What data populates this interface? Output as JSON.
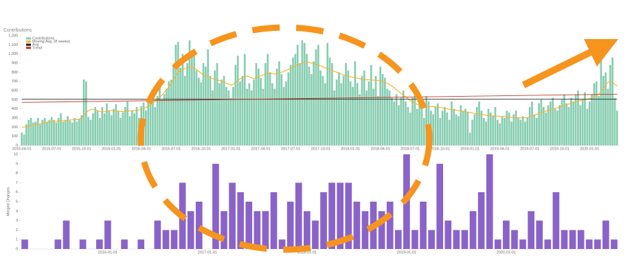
{
  "chart_data": [
    {
      "type": "bar",
      "title": "Contributions",
      "legend": "upper left",
      "categories": [
        "2015-04-01",
        null,
        null,
        null,
        null,
        null,
        null,
        null,
        null,
        null,
        null,
        null,
        null,
        "2015-07-01",
        null,
        null,
        null,
        null,
        null,
        null,
        null,
        null,
        null,
        null,
        null,
        null,
        "2015-10-01",
        null,
        null,
        null,
        null,
        null,
        null,
        null,
        null,
        null,
        null,
        null,
        null,
        "2016-01-01",
        null,
        null,
        null,
        null,
        null,
        null,
        null,
        null,
        null,
        null,
        null,
        null,
        "2016-04-01",
        null,
        null,
        null,
        null,
        null,
        null,
        null,
        null,
        null,
        null,
        null,
        null,
        "2016-07-01",
        null,
        null,
        null,
        null,
        null,
        null,
        null,
        null,
        null,
        null,
        null,
        null,
        "2016-10-01",
        null,
        null,
        null,
        null,
        null,
        null,
        null,
        null,
        null,
        null,
        null,
        null,
        "2017-01-01",
        null,
        null,
        null,
        null,
        null,
        null,
        null,
        null,
        null,
        null,
        null,
        null,
        "2017-04-01",
        null,
        null,
        null,
        null,
        null,
        null,
        null,
        null,
        null,
        null,
        null,
        null,
        "2017-07-01",
        null,
        null,
        null,
        null,
        null,
        null,
        null,
        null,
        null,
        null,
        null,
        null,
        "2017-10-01",
        null,
        null,
        null,
        null,
        null,
        null,
        null,
        null,
        null,
        null,
        null,
        null,
        "2018-01-01",
        null,
        null,
        null,
        null,
        null,
        null,
        null,
        null,
        null,
        null,
        null,
        null,
        "2018-04-01",
        null,
        null,
        null,
        null,
        null,
        null,
        null,
        null,
        null,
        null,
        null,
        null,
        "2018-07-01",
        null,
        null,
        null,
        null,
        null,
        null,
        null,
        null,
        null,
        null,
        null,
        null,
        "2018-10-01",
        null,
        null,
        null,
        null,
        null,
        null,
        null,
        null,
        null,
        null,
        null,
        null,
        "2019-01-01",
        null,
        null,
        null,
        null,
        null,
        null,
        null,
        null,
        null,
        null,
        null,
        null,
        "2019-04-01",
        null,
        null,
        null,
        null,
        null,
        null,
        null,
        null,
        null,
        null,
        null,
        null,
        "2019-07-01",
        null,
        null,
        null,
        null,
        null,
        null,
        null,
        null,
        null,
        null,
        null,
        null,
        "2019-10-01",
        null,
        null,
        null,
        null,
        null,
        null,
        null,
        null,
        null,
        null,
        null,
        null,
        "2020-01-01",
        null,
        null,
        null,
        null,
        null,
        null,
        null,
        null,
        null,
        null,
        null,
        null
      ],
      "series": [
        {
          "name": "Contributions",
          "color": "#86cdb0",
          "values": [
            140,
            120,
            230,
            280,
            300,
            250,
            260,
            300,
            230,
            280,
            300,
            260,
            280,
            310,
            280,
            250,
            300,
            350,
            260,
            280,
            320,
            270,
            250,
            300,
            260,
            290,
            330,
            720,
            700,
            310,
            280,
            350,
            420,
            380,
            300,
            420,
            350,
            460,
            380,
            330,
            400,
            450,
            380,
            300,
            360,
            420,
            480,
            320,
            380,
            350,
            420,
            300,
            430,
            470,
            380,
            520,
            460,
            600,
            420,
            540,
            680,
            500,
            560,
            620,
            700,
            720,
            880,
            1100,
            1130,
            850,
            1000,
            760,
            900,
            1150,
            1020,
            980,
            820,
            740,
            690,
            900,
            860,
            1050,
            760,
            600,
            820,
            900,
            680,
            720,
            760,
            640,
            600,
            520,
            640,
            880,
            980,
            700,
            760,
            1000,
            620,
            680,
            600,
            720,
            900,
            840,
            740,
            620,
            900,
            1000,
            800,
            680,
            620,
            840,
            920,
            780,
            640,
            700,
            800,
            880,
            960,
            1000,
            1100,
            900,
            1150,
            1120,
            1000,
            860,
            780,
            920,
            1050,
            1100,
            820,
            760,
            680,
            1120,
            960,
            900,
            600,
            720,
            800,
            680,
            760,
            900,
            820,
            700,
            640,
            920,
            680,
            560,
            760,
            820,
            600,
            700,
            880,
            620,
            760,
            540,
            860,
            780,
            740,
            620,
            600,
            520,
            480,
            560,
            440,
            520,
            600,
            480,
            420,
            360,
            520,
            560,
            400,
            480,
            420,
            300,
            540,
            480,
            380,
            340,
            420,
            460,
            300,
            380,
            420,
            360,
            280,
            480,
            400,
            340,
            320,
            440,
            380,
            400,
            360,
            140,
            280,
            340,
            420,
            480,
            380,
            300,
            260,
            400,
            360,
            320,
            420,
            280,
            240,
            320,
            300,
            380,
            360,
            260,
            340,
            380,
            300,
            280,
            320,
            260,
            300,
            420,
            480,
            340,
            300,
            460,
            500,
            420,
            360,
            440,
            480,
            520,
            400,
            380,
            440,
            500,
            560,
            460,
            420,
            520,
            480,
            560,
            600,
            440,
            500,
            580,
            400,
            480,
            560,
            680,
            700,
            540,
            940,
            760,
            800,
            620,
            880,
            960,
            520,
            380
          ]
        },
        {
          "name": "Moving Avg. (8 weeks)",
          "type": "line",
          "color": "#f5b335",
          "values": [
            200,
            200,
            205,
            210,
            215,
            220,
            225,
            230,
            235,
            240,
            245,
            250,
            255,
            260,
            262,
            264,
            266,
            268,
            270,
            272,
            275,
            278,
            280,
            282,
            284,
            286,
            300,
            330,
            360,
            380,
            390,
            395,
            390,
            380,
            370,
            365,
            370,
            375,
            380,
            380,
            378,
            376,
            374,
            372,
            370,
            372,
            375,
            378,
            380,
            382,
            385,
            388,
            395,
            405,
            415,
            430,
            445,
            460,
            480,
            500,
            525,
            550,
            580,
            610,
            640,
            680,
            720,
            760,
            800,
            820,
            830,
            840,
            850,
            860,
            855,
            845,
            830,
            810,
            790,
            770,
            760,
            750,
            740,
            730,
            720,
            715,
            710,
            700,
            690,
            680,
            670,
            660,
            670,
            690,
            710,
            730,
            740,
            750,
            760,
            750,
            740,
            730,
            740,
            750,
            760,
            770,
            780,
            790,
            790,
            785,
            780,
            780,
            790,
            800,
            810,
            820,
            830,
            840,
            855,
            870,
            880,
            890,
            900,
            910,
            910,
            905,
            900,
            895,
            890,
            880,
            870,
            860,
            850,
            840,
            830,
            820,
            810,
            800,
            790,
            780,
            770,
            760,
            755,
            750,
            745,
            740,
            735,
            730,
            725,
            720,
            720,
            718,
            716,
            714,
            712,
            710,
            705,
            700,
            690,
            680,
            665,
            650,
            630,
            610,
            590,
            570,
            550,
            530,
            510,
            490,
            475,
            460,
            450,
            445,
            440,
            435,
            430,
            428,
            426,
            424,
            422,
            420,
            415,
            410,
            405,
            400,
            396,
            392,
            388,
            384,
            380,
            376,
            372,
            368,
            364,
            360,
            355,
            350,
            346,
            342,
            338,
            334,
            330,
            328,
            326,
            324,
            322,
            320,
            318,
            316,
            314,
            312,
            310,
            308,
            306,
            304,
            302,
            300,
            300,
            302,
            305,
            310,
            320,
            330,
            340,
            350,
            360,
            368,
            375,
            382,
            390,
            398,
            405,
            412,
            420,
            428,
            436,
            444,
            452,
            460,
            468,
            476,
            484,
            490,
            496,
            500,
            505,
            512,
            520,
            530,
            545,
            560,
            590,
            620,
            660,
            690,
            700,
            690,
            670,
            650
          ]
        }
      ],
      "lines": [
        {
          "name": "Avg",
          "color": "#222222",
          "values": [
            505,
            505
          ]
        },
        {
          "name": "Trend",
          "color": "#c0392b",
          "values": [
            470,
            560
          ]
        }
      ],
      "ylim": [
        0,
        1200
      ],
      "yticks": [
        0,
        100,
        200,
        300,
        400,
        500,
        600,
        700,
        800,
        900,
        {
          "value": 1000,
          "label": "1,000"
        },
        {
          "value": 1100,
          "label": "1,100"
        },
        {
          "value": 1200,
          "label": "1,200"
        }
      ]
    },
    {
      "type": "bar",
      "ylabel": "Merged Changes",
      "color": "#8a63c9",
      "categories": [
        null,
        null,
        null,
        null,
        null,
        null,
        null,
        null,
        null,
        null,
        "2016-01-01",
        null,
        null,
        null,
        null,
        null,
        null,
        null,
        null,
        null,
        null,
        null,
        "2017-01-01",
        null,
        null,
        null,
        null,
        null,
        null,
        null,
        null,
        null,
        null,
        null,
        "2018-01-01",
        null,
        null,
        null,
        null,
        null,
        null,
        null,
        null,
        null,
        null,
        null,
        "2019-01-01",
        null,
        null,
        null,
        null,
        null,
        null,
        null,
        null,
        null,
        null,
        null,
        "2020-01-01",
        null,
        null,
        null,
        null,
        null,
        null,
        null,
        null,
        null,
        null,
        null,
        null,
        null
      ],
      "values": [
        1,
        0,
        0,
        0,
        1,
        3,
        0,
        1,
        0,
        1,
        3,
        0,
        1,
        0,
        1,
        0,
        3,
        2,
        2,
        7,
        4,
        5,
        0,
        9,
        4,
        7,
        6,
        5,
        4,
        4,
        6,
        1,
        5,
        7,
        4,
        3,
        6,
        7,
        7,
        7,
        5,
        4,
        5,
        4,
        5,
        2,
        10,
        2,
        5,
        2,
        9,
        3,
        2,
        2,
        4,
        6,
        10,
        1,
        3,
        2,
        1,
        4,
        3,
        1,
        6,
        2,
        2,
        2,
        1,
        1,
        3,
        1
      ],
      "ylim": [
        0,
        10
      ],
      "yticks": [
        0,
        1,
        2,
        3,
        4,
        5,
        6,
        7,
        8,
        9,
        10
      ]
    }
  ]
}
